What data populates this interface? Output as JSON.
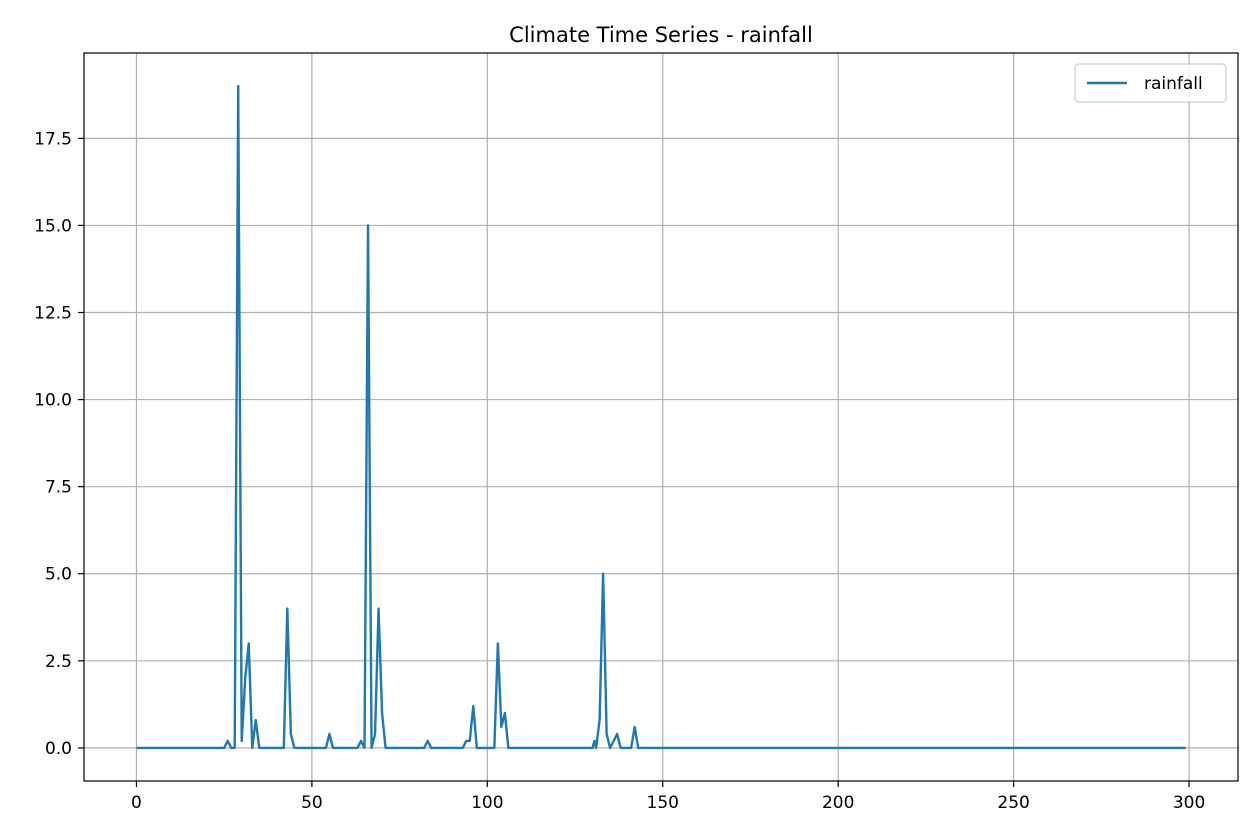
{
  "chart_data": {
    "type": "line",
    "title": "Climate Time Series - rainfall",
    "xlabel": "",
    "ylabel": "",
    "xlim": [
      -14.95,
      313.95
    ],
    "ylim": [
      -0.95,
      19.95
    ],
    "x_ticks": [
      0,
      50,
      100,
      150,
      200,
      250,
      300
    ],
    "x_tick_labels": [
      "0",
      "50",
      "100",
      "150",
      "200",
      "250",
      "300"
    ],
    "y_ticks": [
      0.0,
      2.5,
      5.0,
      7.5,
      10.0,
      12.5,
      15.0,
      17.5
    ],
    "y_tick_labels": [
      "0.0",
      "2.5",
      "5.0",
      "7.5",
      "10.0",
      "12.5",
      "15.0",
      "17.5"
    ],
    "grid": true,
    "legend_position": "top-right",
    "series": [
      {
        "name": "rainfall",
        "color": "#1f77b4",
        "points": [
          [
            0,
            0
          ],
          [
            20,
            0
          ],
          [
            25,
            0
          ],
          [
            26,
            0.2
          ],
          [
            27,
            0
          ],
          [
            28,
            0
          ],
          [
            29,
            19.0
          ],
          [
            30,
            0.2
          ],
          [
            31,
            2.0
          ],
          [
            32,
            3.0
          ],
          [
            33,
            0
          ],
          [
            34,
            0.8
          ],
          [
            35,
            0
          ],
          [
            42,
            0
          ],
          [
            43,
            4.0
          ],
          [
            44,
            0.4
          ],
          [
            45,
            0
          ],
          [
            47,
            0
          ],
          [
            48,
            0
          ],
          [
            54,
            0
          ],
          [
            55,
            0.4
          ],
          [
            56,
            0
          ],
          [
            62,
            0
          ],
          [
            63,
            0
          ],
          [
            64,
            0.2
          ],
          [
            65,
            0
          ],
          [
            66,
            15.0
          ],
          [
            67,
            0
          ],
          [
            68,
            0.4
          ],
          [
            69,
            4.0
          ],
          [
            70,
            1.0
          ],
          [
            71,
            0
          ],
          [
            82,
            0
          ],
          [
            83,
            0.2
          ],
          [
            84,
            0
          ],
          [
            93,
            0
          ],
          [
            94,
            0.2
          ],
          [
            95,
            0.2
          ],
          [
            96,
            1.2
          ],
          [
            97,
            0
          ],
          [
            102,
            0
          ],
          [
            103,
            3.0
          ],
          [
            104,
            0.6
          ],
          [
            105,
            1.0
          ],
          [
            106,
            0
          ],
          [
            108,
            0
          ],
          [
            130,
            0
          ],
          [
            130.5,
            0.2
          ],
          [
            131,
            0
          ],
          [
            132,
            0.8
          ],
          [
            133,
            5.0
          ],
          [
            134,
            0.4
          ],
          [
            135,
            0
          ],
          [
            137,
            0.4
          ],
          [
            138,
            0
          ],
          [
            141,
            0
          ],
          [
            142,
            0.6
          ],
          [
            143,
            0
          ],
          [
            147,
            0
          ],
          [
            148,
            0
          ],
          [
            150,
            0
          ],
          [
            153,
            0
          ],
          [
            179,
            0
          ],
          [
            211,
            0
          ],
          [
            213,
            0
          ],
          [
            243,
            0
          ],
          [
            264,
            0
          ],
          [
            299,
            0
          ]
        ]
      }
    ]
  }
}
